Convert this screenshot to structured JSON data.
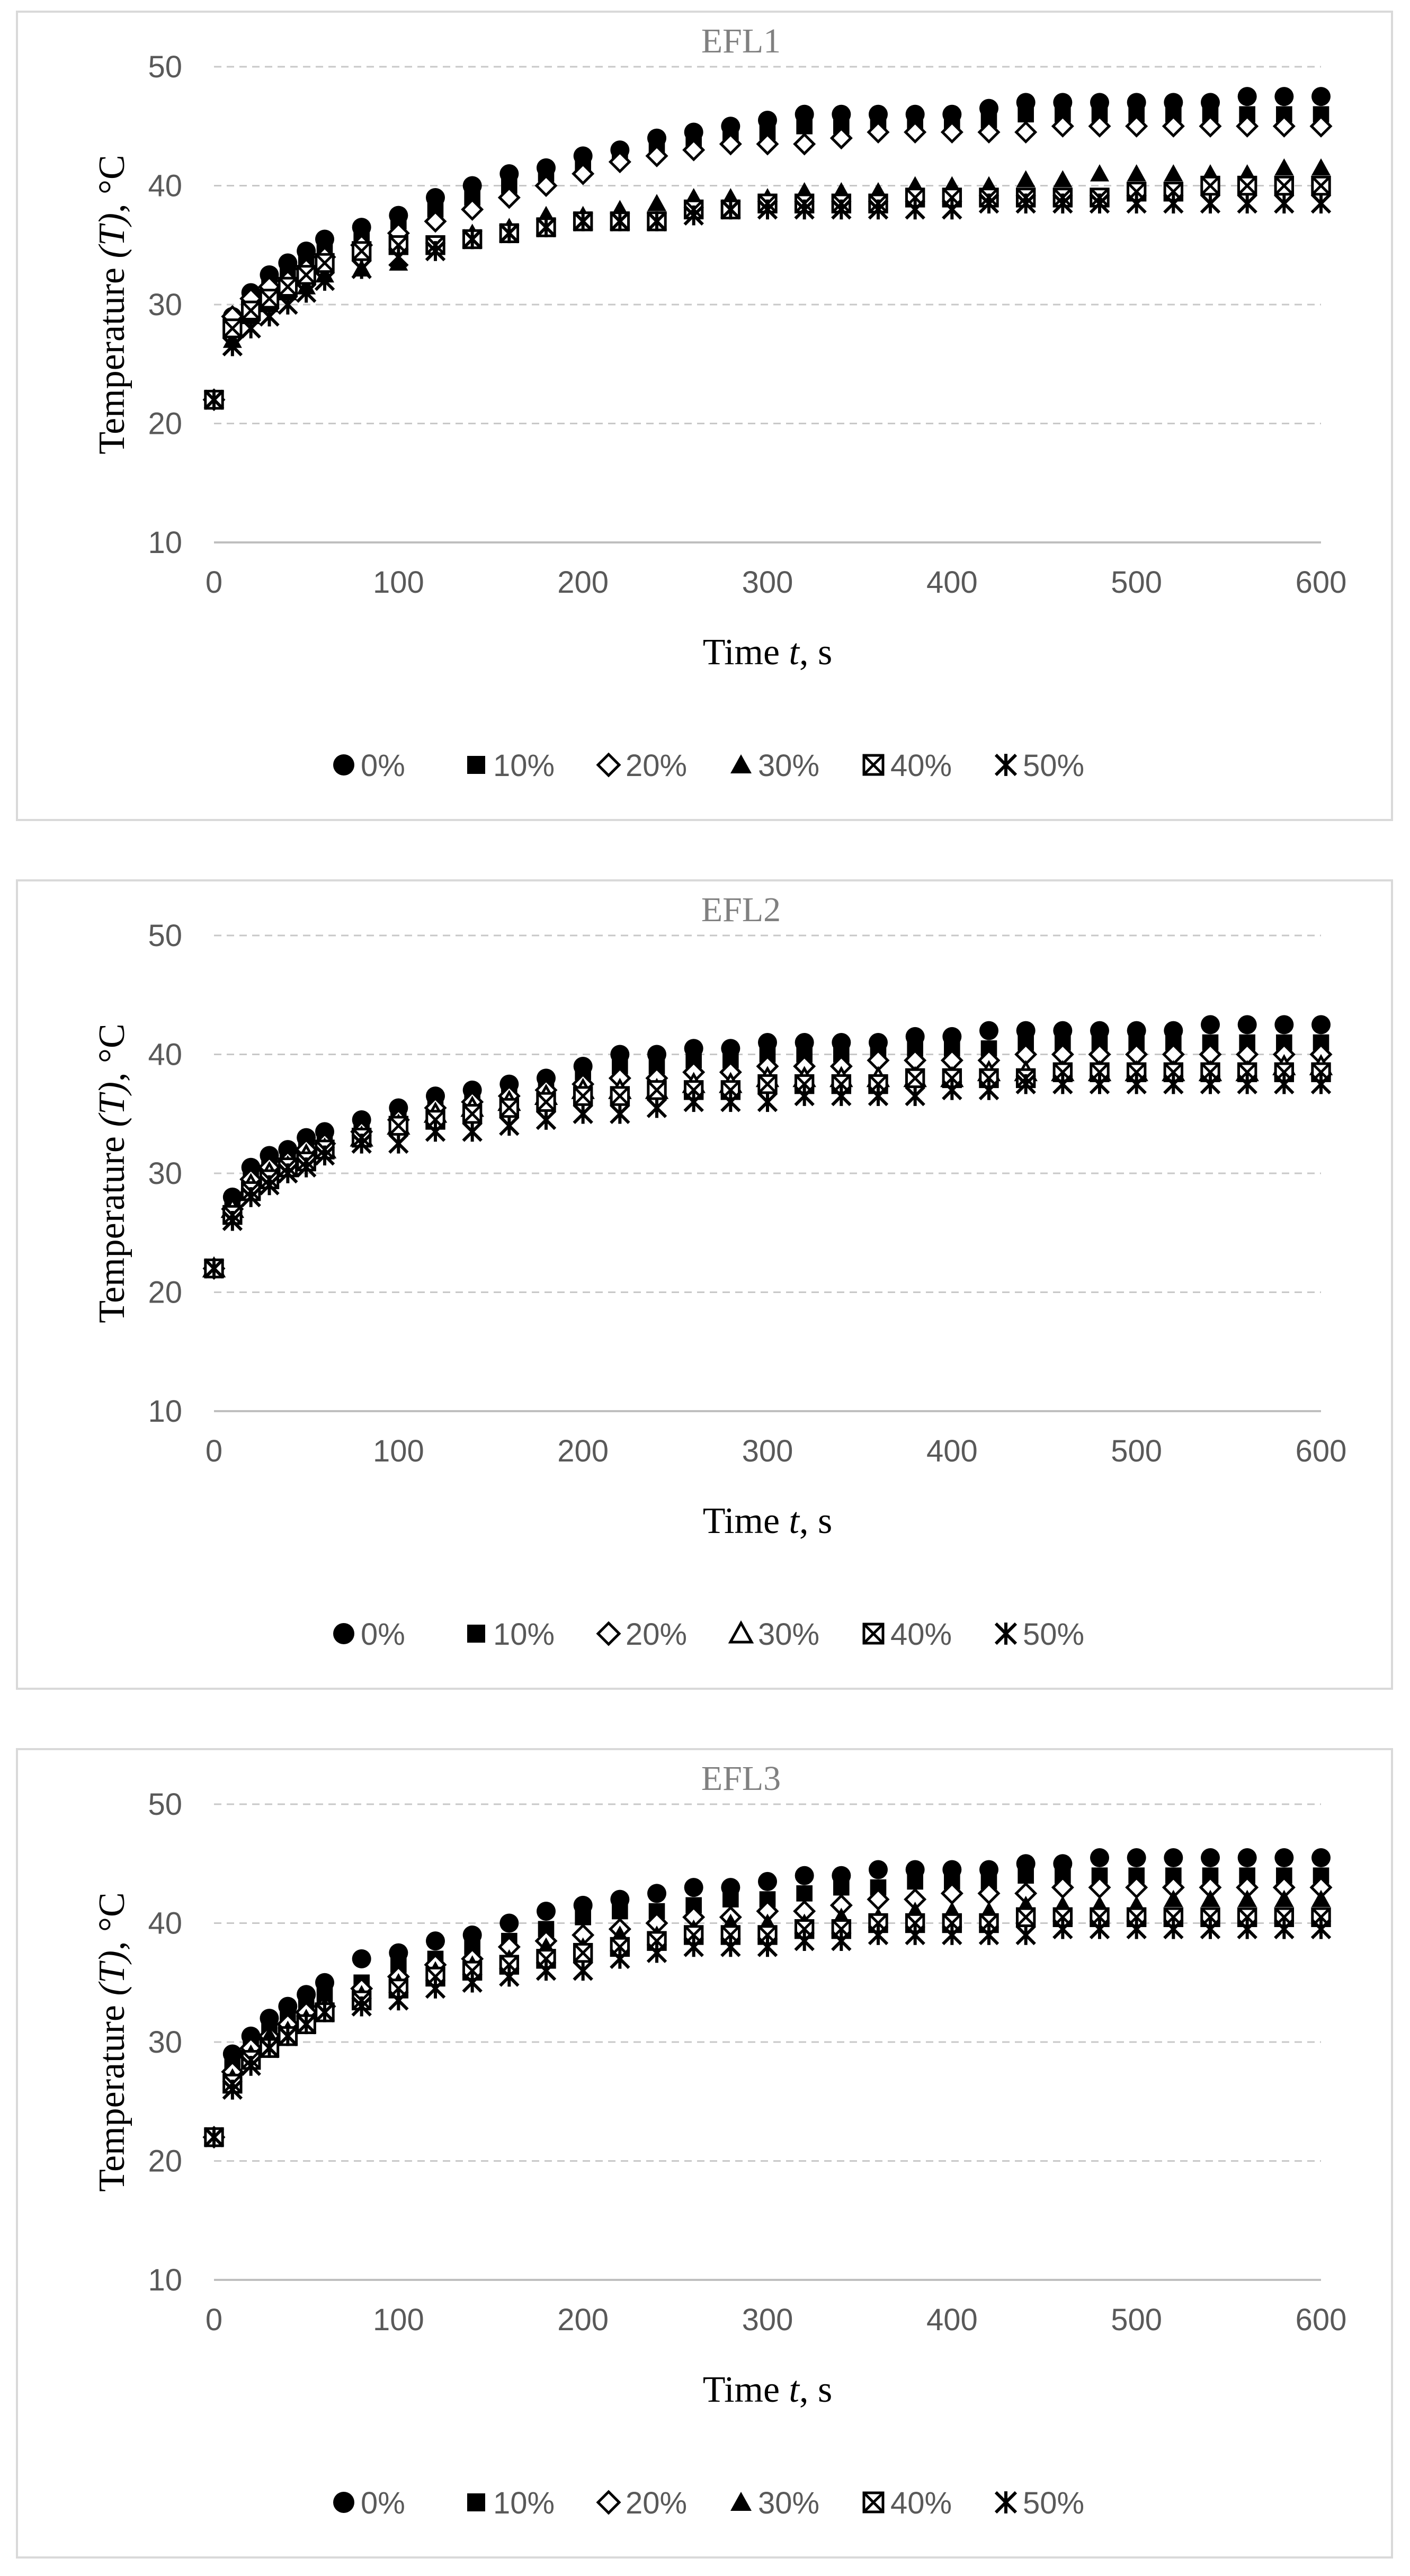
{
  "chart_data": [
    {
      "type": "scatter",
      "title": "EFL1",
      "xlabel_prefix": "Time ",
      "xlabel_var": "t",
      "xlabel_suffix": ", s",
      "ylabel_prefix": "Temperature ",
      "ylabel_var": "(T)",
      "ylabel_suffix": ", °C",
      "xlim": [
        0,
        600
      ],
      "ylim": [
        10,
        50
      ],
      "x_ticks": [
        0,
        100,
        200,
        300,
        400,
        500,
        600
      ],
      "y_ticks": [
        10,
        20,
        30,
        40,
        50
      ],
      "x": [
        0,
        10,
        20,
        30,
        40,
        50,
        60,
        80,
        100,
        120,
        140,
        160,
        180,
        200,
        220,
        240,
        260,
        280,
        300,
        320,
        340,
        360,
        380,
        400,
        420,
        440,
        460,
        480,
        500,
        520,
        540,
        560,
        580,
        600
      ],
      "series": [
        {
          "name": "0%",
          "marker": "circle",
          "values": [
            22,
            29,
            31,
            32.5,
            33.5,
            34.5,
            35.5,
            36.5,
            37.5,
            39,
            40,
            41,
            41.5,
            42.5,
            43,
            44,
            44.5,
            45,
            45.5,
            46,
            46,
            46,
            46,
            46,
            46.5,
            47,
            47,
            47,
            47,
            47,
            47,
            47.5,
            47.5,
            47.5
          ]
        },
        {
          "name": "10%",
          "marker": "square",
          "values": [
            22,
            28.5,
            30.5,
            32,
            33,
            34,
            35,
            36,
            37,
            38,
            39,
            40,
            41,
            41.5,
            42.5,
            43,
            43.5,
            44,
            44.5,
            45,
            45,
            45,
            45,
            45,
            45.5,
            46,
            46,
            46,
            46,
            46,
            46,
            46,
            46,
            46
          ]
        },
        {
          "name": "20%",
          "marker": "diamond-open",
          "values": [
            22,
            29,
            30.5,
            31.5,
            32,
            33,
            34,
            35,
            36,
            37,
            38,
            39,
            40,
            41,
            42,
            42.5,
            43,
            43.5,
            43.5,
            43.5,
            44,
            44.5,
            44.5,
            44.5,
            44.5,
            44.5,
            45,
            45,
            45,
            45,
            45,
            45,
            45,
            45
          ]
        },
        {
          "name": "30%",
          "marker": "triangle",
          "values": [
            22,
            27,
            29,
            30,
            31,
            31.5,
            32.5,
            33,
            33.5,
            35,
            36,
            36.5,
            37.5,
            37.5,
            38,
            38.5,
            39,
            39,
            39,
            39.5,
            39.5,
            39.5,
            40,
            40,
            40,
            40.5,
            40.5,
            41,
            41,
            41,
            41,
            41,
            41.5,
            41.5
          ]
        },
        {
          "name": "40%",
          "marker": "square-cross",
          "values": [
            22,
            28,
            29.5,
            30.5,
            31.5,
            32.5,
            33.5,
            34.5,
            35,
            35,
            35.5,
            36,
            36.5,
            37,
            37,
            37,
            38,
            38,
            38.5,
            38.5,
            38.5,
            38.5,
            39,
            39,
            39,
            39,
            39,
            39,
            39.5,
            39.5,
            40,
            40,
            40,
            40
          ]
        },
        {
          "name": "50%",
          "marker": "star",
          "values": [
            22,
            26.5,
            28,
            29,
            30,
            31,
            32,
            33,
            34,
            34.5,
            35.5,
            36,
            36.5,
            37,
            37,
            37,
            37.5,
            38,
            38,
            38,
            38,
            38,
            38,
            38,
            38.5,
            38.5,
            38.5,
            38.5,
            38.5,
            38.5,
            38.5,
            38.5,
            38.5,
            38.5
          ]
        }
      ]
    },
    {
      "type": "scatter",
      "title": "EFL2",
      "xlabel_prefix": "Time ",
      "xlabel_var": "t",
      "xlabel_suffix": ", s",
      "ylabel_prefix": "Temperature ",
      "ylabel_var": "(T)",
      "ylabel_suffix": ", °C",
      "xlim": [
        0,
        600
      ],
      "ylim": [
        10,
        50
      ],
      "x_ticks": [
        0,
        100,
        200,
        300,
        400,
        500,
        600
      ],
      "y_ticks": [
        10,
        20,
        30,
        40,
        50
      ],
      "x": [
        0,
        10,
        20,
        30,
        40,
        50,
        60,
        80,
        100,
        120,
        140,
        160,
        180,
        200,
        220,
        240,
        260,
        280,
        300,
        320,
        340,
        360,
        380,
        400,
        420,
        440,
        460,
        480,
        500,
        520,
        540,
        560,
        580,
        600
      ],
      "series": [
        {
          "name": "0%",
          "marker": "circle",
          "values": [
            22,
            28,
            30.5,
            31.5,
            32,
            33,
            33.5,
            34.5,
            35.5,
            36.5,
            37,
            37.5,
            38,
            39,
            40,
            40,
            40.5,
            40.5,
            41,
            41,
            41,
            41,
            41.5,
            41.5,
            42,
            42,
            42,
            42,
            42,
            42,
            42.5,
            42.5,
            42.5,
            42.5
          ]
        },
        {
          "name": "10%",
          "marker": "square",
          "values": [
            22,
            27.5,
            30,
            31,
            31.5,
            32.5,
            33,
            34,
            35,
            36,
            36.5,
            37,
            37.5,
            38.5,
            39,
            39,
            39.5,
            39.5,
            40,
            40,
            40,
            40,
            40.5,
            40.5,
            40.5,
            41,
            41,
            41,
            41,
            41,
            41,
            41,
            41,
            41
          ]
        },
        {
          "name": "20%",
          "marker": "diamond-open",
          "values": [
            22,
            27,
            29.5,
            30.5,
            31,
            32,
            32.5,
            33.5,
            34.5,
            35.5,
            36,
            36.5,
            37,
            37.5,
            38,
            38,
            38.5,
            38.5,
            39,
            39,
            39,
            39.5,
            39.5,
            39.5,
            39.5,
            40,
            40,
            40,
            40,
            40,
            40,
            40,
            40,
            40
          ]
        },
        {
          "name": "30%",
          "marker": "triangle-open",
          "values": [
            22,
            27,
            29,
            30,
            30.5,
            31.5,
            32,
            33,
            34,
            35,
            35.5,
            36,
            36.5,
            37,
            37,
            37,
            37.5,
            37.5,
            38,
            38,
            38,
            38,
            38,
            38,
            38.5,
            38.5,
            38.5,
            38.5,
            38.5,
            38.5,
            38.5,
            38.5,
            39,
            39
          ]
        },
        {
          "name": "40%",
          "marker": "square-cross",
          "values": [
            22,
            26.5,
            28.5,
            29.5,
            30.5,
            31,
            32,
            33,
            34,
            34.5,
            35,
            35.5,
            36,
            36.5,
            36.5,
            37,
            37,
            37,
            37.5,
            37.5,
            37.5,
            37.5,
            38,
            38,
            38,
            38,
            38.5,
            38.5,
            38.5,
            38.5,
            38.5,
            38.5,
            38.5,
            38.5
          ]
        },
        {
          "name": "50%",
          "marker": "star",
          "values": [
            22,
            26,
            28,
            29,
            30,
            30.5,
            31.5,
            32.5,
            32.5,
            33.5,
            33.5,
            34,
            34.5,
            35,
            35,
            35.5,
            36,
            36,
            36,
            36.5,
            36.5,
            36.5,
            36.5,
            37,
            37,
            37.5,
            37.5,
            37.5,
            37.5,
            37.5,
            37.5,
            37.5,
            37.5,
            37.5
          ]
        }
      ]
    },
    {
      "type": "scatter",
      "title": "EFL3",
      "xlabel_prefix": "Time ",
      "xlabel_var": "t",
      "xlabel_suffix": ", s",
      "ylabel_prefix": "Temperature ",
      "ylabel_var": "(T)",
      "ylabel_suffix": ", °C",
      "xlim": [
        0,
        600
      ],
      "ylim": [
        10,
        50
      ],
      "x_ticks": [
        0,
        100,
        200,
        300,
        400,
        500,
        600
      ],
      "y_ticks": [
        10,
        20,
        30,
        40,
        50
      ],
      "x": [
        0,
        10,
        20,
        30,
        40,
        50,
        60,
        80,
        100,
        120,
        140,
        160,
        180,
        200,
        220,
        240,
        260,
        280,
        300,
        320,
        340,
        360,
        380,
        400,
        420,
        440,
        460,
        480,
        500,
        520,
        540,
        560,
        580,
        600
      ],
      "series": [
        {
          "name": "0%",
          "marker": "circle",
          "values": [
            22,
            29,
            30.5,
            32,
            33,
            34,
            35,
            37,
            37.5,
            38.5,
            39,
            40,
            41,
            41.5,
            42,
            42.5,
            43,
            43,
            43.5,
            44,
            44,
            44.5,
            44.5,
            44.5,
            44.5,
            45,
            45,
            45.5,
            45.5,
            45.5,
            45.5,
            45.5,
            45.5,
            45.5
          ]
        },
        {
          "name": "10%",
          "marker": "square",
          "values": [
            22,
            28,
            30,
            31,
            32,
            33,
            34,
            35,
            36.5,
            37,
            38,
            38.5,
            39.5,
            40.5,
            41,
            41,
            41.5,
            42,
            42,
            42.5,
            43,
            43,
            43.5,
            43.5,
            43.5,
            44,
            44,
            44,
            44,
            44,
            44,
            44,
            44,
            44
          ]
        },
        {
          "name": "20%",
          "marker": "diamond-open",
          "values": [
            22,
            27.5,
            29.5,
            30.5,
            31.5,
            32.5,
            33,
            34.5,
            35.5,
            36.5,
            37,
            38,
            38.5,
            39,
            39.5,
            40,
            40.5,
            40.5,
            41,
            41,
            41.5,
            42,
            42,
            42.5,
            42.5,
            42.5,
            43,
            43,
            43,
            43,
            43,
            43,
            43,
            43
          ]
        },
        {
          "name": "30%",
          "marker": "triangle",
          "values": [
            22,
            27,
            29,
            30.5,
            31,
            32,
            33,
            34,
            35,
            36,
            36.5,
            37,
            38,
            38,
            39,
            39,
            39.5,
            40,
            40,
            40,
            40.5,
            40.5,
            41,
            41,
            41,
            41.5,
            41.5,
            41.5,
            41.5,
            42,
            42,
            42,
            42,
            42
          ]
        },
        {
          "name": "40%",
          "marker": "square-cross",
          "values": [
            22,
            26.5,
            28.5,
            29.5,
            30.5,
            31.5,
            32.5,
            33.5,
            34.5,
            35.5,
            36,
            36.5,
            37,
            37.5,
            38,
            38.5,
            39,
            39,
            39,
            39.5,
            39.5,
            40,
            40,
            40,
            40,
            40.5,
            40.5,
            40.5,
            40.5,
            40.5,
            40.5,
            40.5,
            40.5,
            40.5
          ]
        },
        {
          "name": "50%",
          "marker": "star",
          "values": [
            22,
            26,
            28,
            29.5,
            30.5,
            31.5,
            32.5,
            33,
            33.5,
            34.5,
            35,
            35.5,
            36,
            36,
            37,
            37.5,
            38,
            38,
            38,
            38.5,
            38.5,
            39,
            39,
            39,
            39,
            39,
            39.5,
            39.5,
            39.5,
            39.5,
            39.5,
            39.5,
            39.5,
            39.5
          ]
        }
      ]
    }
  ]
}
